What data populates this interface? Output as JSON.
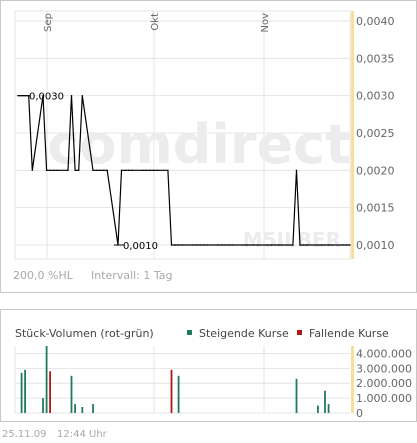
{
  "price_chart_info": {
    "scale_label": "200,0 %HL",
    "interval_label": "Intervall: 1 Tag",
    "watermark_logo": "comdirect",
    "watermark_source": "M5ILBER"
  },
  "volume_chart_info": {
    "title": "Stück-Volumen (rot-grün)",
    "legend_rising": "Steigende Kurse",
    "legend_falling": "Fallende Kurse"
  },
  "footer": {
    "date": "25.11.09",
    "time": "12:44 Uhr"
  },
  "colors": {
    "price_line": "#000000",
    "grid": "#e4e4e4",
    "current_marker": "#f6df9a",
    "rising": "#1f7a5a",
    "falling": "#b01818",
    "watermark": "#ececec"
  },
  "chart_data": [
    {
      "type": "line",
      "title": "",
      "xlabel": "",
      "ylabel": "",
      "x_tick_labels": [
        "Sep",
        "Okt",
        "Nov"
      ],
      "y_tick_labels": [
        "0,0040",
        "0,0035",
        "0,0030",
        "0,0025",
        "0,0020",
        "0,0015",
        "0,0010"
      ],
      "ylim": [
        0.001,
        0.004
      ],
      "y_ticks": [
        0.004,
        0.0035,
        0.003,
        0.0025,
        0.002,
        0.0015,
        0.001
      ],
      "annotations": [
        {
          "text": "0,0030",
          "type": "high"
        },
        {
          "text": "0,0010",
          "type": "low"
        }
      ],
      "grid": true,
      "x": [
        "2009-08-24",
        "2009-08-25",
        "2009-08-26",
        "2009-08-27",
        "2009-08-28",
        "2009-08-31",
        "2009-09-01",
        "2009-09-02",
        "2009-09-03",
        "2009-09-04",
        "2009-09-07",
        "2009-09-08",
        "2009-09-09",
        "2009-09-10",
        "2009-09-11",
        "2009-09-14",
        "2009-09-15",
        "2009-09-16",
        "2009-09-17",
        "2009-09-18",
        "2009-09-21",
        "2009-09-22",
        "2009-09-23",
        "2009-09-24",
        "2009-09-25",
        "2009-09-28",
        "2009-09-29",
        "2009-09-30",
        "2009-10-01",
        "2009-10-02",
        "2009-10-05",
        "2009-10-06",
        "2009-10-07",
        "2009-10-08",
        "2009-10-09",
        "2009-10-12",
        "2009-10-13",
        "2009-10-14",
        "2009-10-15",
        "2009-10-16",
        "2009-10-19",
        "2009-10-20",
        "2009-10-21",
        "2009-10-22",
        "2009-10-23",
        "2009-10-26",
        "2009-10-27",
        "2009-10-28",
        "2009-10-29",
        "2009-10-30",
        "2009-11-02",
        "2009-11-03",
        "2009-11-04",
        "2009-11-05",
        "2009-11-06",
        "2009-11-09",
        "2009-11-10",
        "2009-11-11",
        "2009-11-12",
        "2009-11-13",
        "2009-11-16",
        "2009-11-17",
        "2009-11-18",
        "2009-11-19",
        "2009-11-20",
        "2009-11-23",
        "2009-11-24",
        "2009-11-25"
      ],
      "values": [
        0.003,
        0.003,
        0.003,
        0.003,
        0.002,
        0.003,
        0.002,
        0.002,
        0.002,
        0.002,
        0.002,
        0.003,
        0.002,
        0.002,
        0.003,
        0.002,
        0.002,
        0.002,
        0.002,
        0.002,
        0.001,
        0.002,
        0.002,
        0.002,
        0.002,
        0.002,
        0.002,
        0.002,
        0.002,
        0.002,
        0.002,
        0.001,
        0.001,
        0.001,
        0.001,
        0.001,
        0.001,
        0.001,
        0.001,
        0.001,
        0.001,
        0.001,
        0.001,
        0.001,
        0.001,
        0.001,
        0.001,
        0.001,
        0.001,
        0.001,
        0.001,
        0.001,
        0.001,
        0.001,
        0.001,
        0.001,
        0.002,
        0.001,
        0.001,
        0.001,
        0.001,
        0.001,
        0.001,
        0.001,
        0.001,
        0.001,
        0.001,
        0.001
      ]
    },
    {
      "type": "bar",
      "title": "",
      "xlabel": "",
      "ylabel": "",
      "y_tick_labels": [
        "4.000.000",
        "3.000.000",
        "2.000.000",
        "1.000.000",
        "0"
      ],
      "ylim": [
        0,
        4500000
      ],
      "y_ticks": [
        4000000,
        3000000,
        2000000,
        1000000,
        0
      ],
      "grid": true,
      "bars": [
        {
          "date": "2009-08-25",
          "value": 2700000,
          "direction": "rising"
        },
        {
          "date": "2009-08-26",
          "value": 2900000,
          "direction": "rising"
        },
        {
          "date": "2009-08-31",
          "value": 1000000,
          "direction": "rising"
        },
        {
          "date": "2009-09-01",
          "value": 4500000,
          "direction": "rising"
        },
        {
          "date": "2009-09-02",
          "value": 2800000,
          "direction": "falling"
        },
        {
          "date": "2009-09-08",
          "value": 2500000,
          "direction": "rising"
        },
        {
          "date": "2009-09-09",
          "value": 600000,
          "direction": "rising"
        },
        {
          "date": "2009-09-11",
          "value": 400000,
          "direction": "rising"
        },
        {
          "date": "2009-09-14",
          "value": 600000,
          "direction": "rising"
        },
        {
          "date": "2009-10-06",
          "value": 2900000,
          "direction": "falling"
        },
        {
          "date": "2009-10-08",
          "value": 2500000,
          "direction": "rising"
        },
        {
          "date": "2009-11-10",
          "value": 2300000,
          "direction": "rising"
        },
        {
          "date": "2009-11-16",
          "value": 500000,
          "direction": "rising"
        },
        {
          "date": "2009-11-18",
          "value": 1500000,
          "direction": "rising"
        },
        {
          "date": "2009-11-19",
          "value": 600000,
          "direction": "rising"
        }
      ]
    }
  ]
}
